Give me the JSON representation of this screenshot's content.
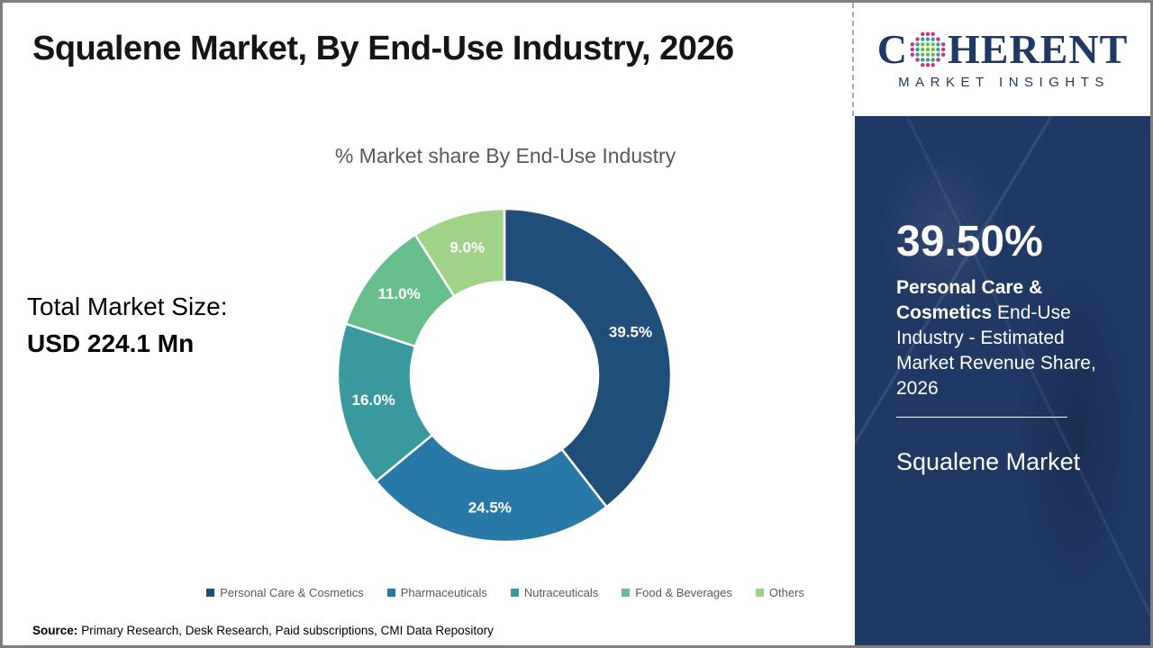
{
  "page": {
    "title": "Squalene Market, By End-Use Industry, 2026"
  },
  "logo": {
    "brand_prefix": "C",
    "brand_suffix": "HERENT",
    "subtitle": "MARKET INSIGHTS",
    "text_color": "#1F3864",
    "globe_dot_colors": {
      "outer": "#C9317E",
      "mid": "#2E9CA6",
      "inner": "#6CBE45"
    }
  },
  "market_size": {
    "label": "Total Market Size:",
    "value": "USD 224.1 Mn"
  },
  "chart_data": {
    "type": "pie",
    "donut": true,
    "title": "% Market share By End-Use Industry",
    "start_angle_deg": 0,
    "direction": "clockwise",
    "categories": [
      "Personal Care & Cosmetics",
      "Pharmaceuticals",
      "Nutraceuticals",
      "Food & Beverages",
      "Others"
    ],
    "values": [
      39.5,
      24.5,
      16.0,
      11.0,
      9.0
    ],
    "labels": [
      "39.5%",
      "24.5%",
      "16.0%",
      "11.0%",
      "9.0%"
    ],
    "colors": [
      "#1F4E79",
      "#2879A8",
      "#39999F",
      "#68BE8D",
      "#9FD488"
    ],
    "legend_position": "bottom"
  },
  "sidebar": {
    "background": "#1F3864",
    "highlight_value": "39.50%",
    "highlight_bold": "Personal Care & Cosmetics",
    "highlight_rest": " End-Use Industry - Estimated Market Revenue Share, 2026",
    "market_name": "Squalene Market"
  },
  "source": {
    "label": "Source:",
    "text": "Primary Research, Desk Research, Paid subscriptions, CMI Data Repository"
  }
}
